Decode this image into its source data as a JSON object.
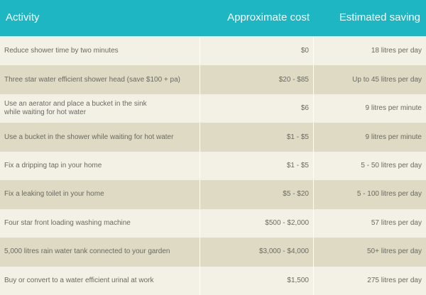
{
  "header": {
    "activity": "Activity",
    "cost": "Approximate cost",
    "saving": "Estimated saving"
  },
  "rows": [
    {
      "activity": "Reduce shower time by two minutes",
      "cost": "$0",
      "saving": "18 litres per day"
    },
    {
      "activity": "Three star water efficient shower head (save $100 + pa)",
      "cost": "$20 - $85",
      "saving": "Up to 45 litres per day"
    },
    {
      "activity": "Use an aerator and place a bucket in the sink\nwhile waiting for hot water",
      "cost": "$6",
      "saving": "9 litres per minute"
    },
    {
      "activity": "Use a bucket in the shower while waiting for hot water",
      "cost": "$1 - $5",
      "saving": "9 litres per minute"
    },
    {
      "activity": "Fix a dripping tap in your home",
      "cost": "$1 - $5",
      "saving": "5 - 50 litres per day"
    },
    {
      "activity": "Fix a leaking toilet in your home",
      "cost": "$5 - $20",
      "saving": "5 - 100 litres per day"
    },
    {
      "activity": "Four star front loading washing machine",
      "cost": "$500 - $2,000",
      "saving": "57 litres per day"
    },
    {
      "activity": "5,000 litres rain water tank connected to your garden",
      "cost": "$3,000 - $4,000",
      "saving": "50+ litres per day"
    },
    {
      "activity": "Buy or convert to a water efficient urinal at work",
      "cost": "$1,500",
      "saving": "275 litres per day"
    }
  ],
  "colors": {
    "header_bg": "#1fb6c4",
    "row_light": "#f3f1e6",
    "row_dark": "#dedac4",
    "text": "#6a6a62"
  }
}
